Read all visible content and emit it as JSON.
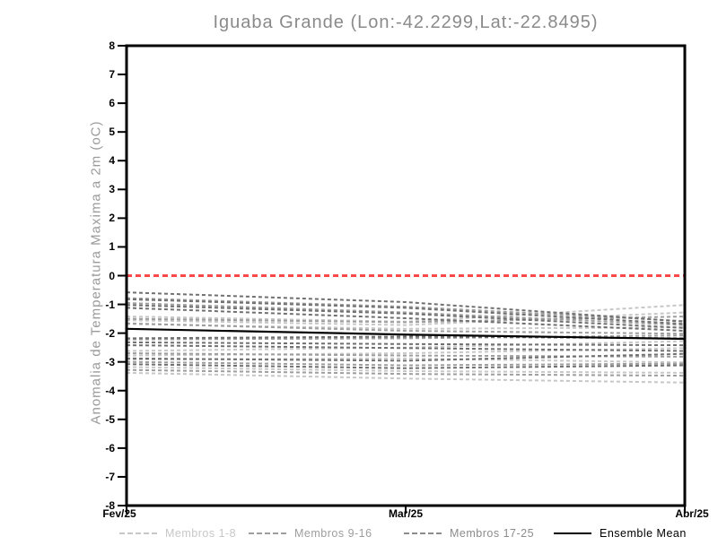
{
  "title": "Iguaba Grande (Lon:-42.2299,Lat:-22.8495)",
  "y_axis_label": "Anomalia de Temperatura Maxima a 2m (oC)",
  "colors": {
    "axis": "#000000",
    "title_text": "#8a8a8a",
    "y_label_text": "#9a9a9a",
    "zero_line": "#fb4848",
    "members_1_8": "#c7c7c7",
    "members_9_16": "#9e9e9e",
    "members_17_25": "#707070",
    "ensemble_mean": "#000000"
  },
  "chart_data": {
    "type": "line",
    "x_categories": [
      "Fev/25",
      "Mar/25",
      "Abr/25"
    ],
    "ylim": [
      -8,
      8
    ],
    "y_ticks": [
      8,
      7,
      6,
      5,
      4,
      3,
      2,
      1,
      0,
      -1,
      -2,
      -3,
      -4,
      -5,
      -6,
      -7,
      -8
    ],
    "grid": false,
    "legend_position": "bottom",
    "zero_line": {
      "value": 0,
      "color": "#fb4848",
      "style": "dashed"
    },
    "series_groups": [
      {
        "name": "Membros 1-8",
        "color": "#c7c7c7",
        "style": "dashed",
        "members": [
          [
            -1.42,
            -1.6,
            -1.02
          ],
          [
            -1.55,
            -1.72,
            -1.28
          ],
          [
            -1.68,
            -1.85,
            -1.8
          ],
          [
            -2.62,
            -2.5,
            -2.28
          ],
          [
            -2.78,
            -2.7,
            -2.52
          ],
          [
            -2.92,
            -2.88,
            -3.02
          ],
          [
            -3.18,
            -3.32,
            -3.38
          ],
          [
            -3.38,
            -3.58,
            -3.72
          ]
        ]
      },
      {
        "name": "Membros 9-16",
        "color": "#9e9e9e",
        "style": "dashed",
        "members": [
          [
            -0.78,
            -1.08,
            -1.58
          ],
          [
            -0.95,
            -1.28,
            -1.72
          ],
          [
            -1.5,
            -1.62,
            -1.42
          ],
          [
            -1.66,
            -1.92,
            -2.02
          ],
          [
            -2.22,
            -2.18,
            -2.08
          ],
          [
            -2.7,
            -2.78,
            -2.82
          ],
          [
            -3.0,
            -3.12,
            -3.06
          ],
          [
            -3.28,
            -3.42,
            -3.48
          ]
        ]
      },
      {
        "name": "Membros 17-25",
        "color": "#707070",
        "style": "dashed",
        "members": [
          [
            -0.58,
            -0.92,
            -1.6
          ],
          [
            -0.82,
            -1.12,
            -1.68
          ],
          [
            -1.02,
            -1.32,
            -1.82
          ],
          [
            -1.12,
            -1.48,
            -1.92
          ],
          [
            -2.18,
            -2.12,
            -2.18
          ],
          [
            -2.32,
            -2.38,
            -2.42
          ],
          [
            -2.42,
            -2.52,
            -2.62
          ],
          [
            -2.88,
            -2.96,
            -2.72
          ],
          [
            -3.08,
            -3.22,
            -3.12
          ]
        ]
      }
    ],
    "ensemble_mean": {
      "name": "Ensemble Mean",
      "color": "#000000",
      "style": "solid",
      "values": [
        -1.85,
        -2.05,
        -2.2
      ]
    },
    "legend": [
      {
        "label": "Membros 1-8",
        "color": "#c7c7c7",
        "style": "dashed"
      },
      {
        "label": "Membros 9-16",
        "color": "#9e9e9e",
        "style": "dashed"
      },
      {
        "label": "Membros 17-25",
        "color": "#8c8c8c",
        "style": "dashed"
      },
      {
        "label": "Ensemble Mean",
        "color": "#000000",
        "style": "solid"
      }
    ]
  }
}
